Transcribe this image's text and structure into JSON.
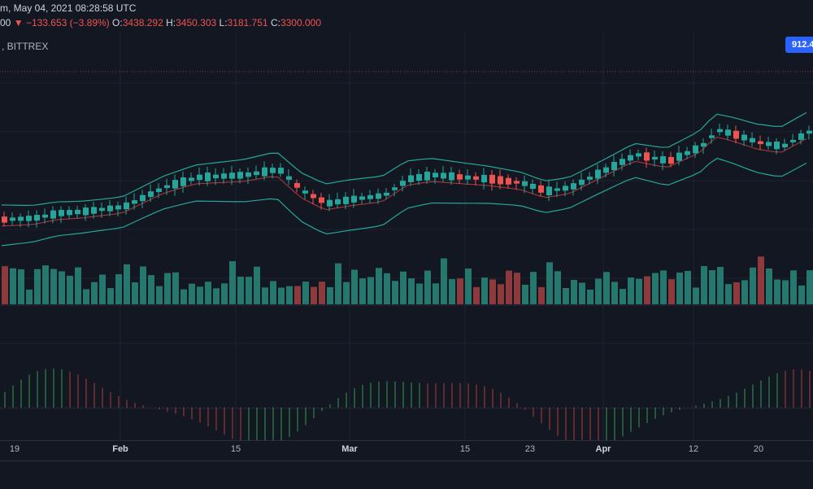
{
  "header": {
    "datetime_fragment": "m, May 04, 2021 08:28:58 UTC",
    "change_prefix": "00",
    "change_arrow": "▼",
    "change_value": "−133.653 (−3.89%)",
    "open_label": "O:",
    "open_value": "3438.292",
    "high_label": "H:",
    "high_value": "3450.303",
    "low_label": "L:",
    "low_value": "3181.751",
    "close_label": "C:",
    "close_value": "3300.000"
  },
  "legend": {
    "symbol_fragment": ", BITTREX"
  },
  "price_badge": "912.4",
  "time_axis": {
    "ticks": [
      {
        "label": "19",
        "strong": false
      },
      {
        "label": "Feb",
        "strong": true
      },
      {
        "label": "15",
        "strong": false
      },
      {
        "label": "Mar",
        "strong": true
      },
      {
        "label": "15",
        "strong": false
      },
      {
        "label": "23",
        "strong": false
      },
      {
        "label": "Apr",
        "strong": true
      },
      {
        "label": "12",
        "strong": false
      },
      {
        "label": "20",
        "strong": false
      }
    ]
  },
  "colors": {
    "up": "#26a69a",
    "down": "#ef5350",
    "background": "#131722",
    "grid": "#1f2330",
    "band": "#26a69a",
    "basis": "#b23b3b",
    "badge": "#2962ff"
  }
}
